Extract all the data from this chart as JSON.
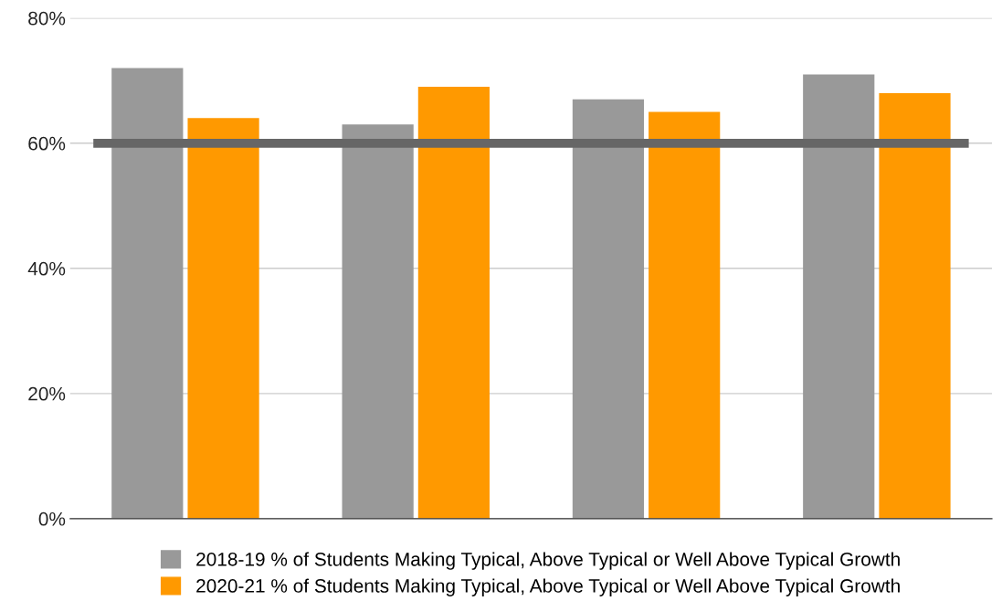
{
  "chart_data": {
    "type": "bar",
    "categories": [
      null,
      null,
      null,
      null
    ],
    "series": [
      {
        "name": "2018-19 % of Students Making Typical, Above Typical or Well Above Typical Growth",
        "color": "#999999",
        "values": [
          72,
          63,
          67,
          71
        ]
      },
      {
        "name": "2020-21 % of Students Making Typical, Above Typical or Well Above Typical Growth",
        "color": "#ff9900",
        "values": [
          64,
          69,
          65,
          68
        ]
      }
    ],
    "ylim": [
      0,
      80
    ],
    "yticks": [
      {
        "value": 0,
        "label": "0%"
      },
      {
        "value": 20,
        "label": "20%"
      },
      {
        "value": 40,
        "label": "40%"
      },
      {
        "value": 60,
        "label": "60%"
      },
      {
        "value": 80,
        "label": "80%"
      }
    ],
    "ref_lines": [
      {
        "axis": "y",
        "value": 60,
        "color": "#666666"
      }
    ],
    "grid": "y",
    "legend": "bottom"
  }
}
